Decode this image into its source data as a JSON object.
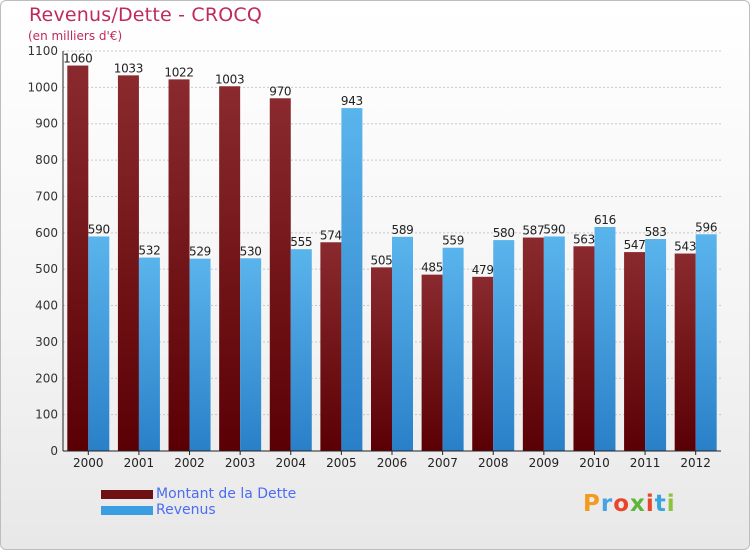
{
  "title": "Revenus/Dette - CROCQ",
  "subtitle": "(en milliers d'€)",
  "logo_text": "Proxiti",
  "colors": {
    "dette": "#6e1014",
    "revenus": "#3a9ee0",
    "title": "#c0295f",
    "legend_text": "#4c6cf2"
  },
  "chart_data": {
    "type": "bar",
    "title": "Revenus/Dette - CROCQ",
    "subtitle": "(en milliers d'€)",
    "categories": [
      "2000",
      "2001",
      "2002",
      "2003",
      "2004",
      "2005",
      "2006",
      "2007",
      "2008",
      "2009",
      "2010",
      "2011",
      "2012"
    ],
    "series": [
      {
        "name": "Montant de la Dette",
        "values": [
          1060,
          1033,
          1022,
          1003,
          970,
          574,
          505,
          485,
          479,
          587,
          563,
          547,
          543
        ]
      },
      {
        "name": "Revenus",
        "values": [
          590,
          532,
          529,
          530,
          555,
          943,
          589,
          559,
          580,
          590,
          616,
          583,
          596
        ]
      }
    ],
    "ylim": [
      0,
      1100
    ],
    "yticks": [
      0,
      100,
      200,
      300,
      400,
      500,
      600,
      700,
      800,
      900,
      1000,
      1100
    ],
    "grid": true,
    "legend": "bottom-left"
  }
}
